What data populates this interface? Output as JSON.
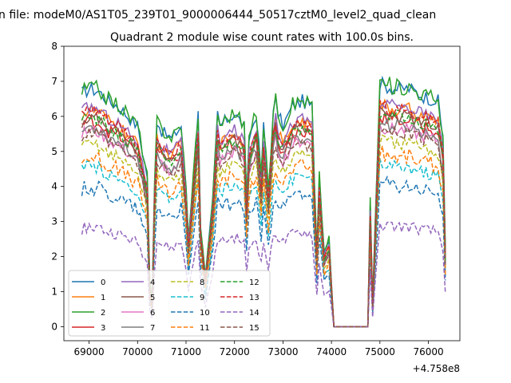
{
  "chart_data": {
    "type": "line",
    "suptitle": "n file: modeM0/AS1T05_239T01_9000006444_50517cztM0_level2_quad_clean",
    "title": "Quadrant 2 module wise count rates with 100.0s bins.",
    "xlabel": "",
    "ylabel": "",
    "x_offset_label": "+4.758e8",
    "xlim": [
      68480,
      76650
    ],
    "ylim": [
      -0.4,
      8.0
    ],
    "xticks": [
      69000,
      70000,
      71000,
      72000,
      73000,
      74000,
      75000,
      76000
    ],
    "xtick_labels": [
      "69000",
      "70000",
      "71000",
      "72000",
      "73000",
      "74000",
      "75000",
      "76000"
    ],
    "yticks": [
      0,
      1,
      2,
      3,
      4,
      5,
      6,
      7,
      8
    ],
    "ytick_labels": [
      "0",
      "1",
      "2",
      "3",
      "4",
      "5",
      "6",
      "7",
      "8"
    ],
    "grid": false,
    "legend_position": "lower-left",
    "legend_columns": 4,
    "x_segments": [
      [
        68850,
        70250
      ],
      [
        70300,
        72800
      ],
      [
        72850,
        74050
      ],
      [
        74050,
        74750
      ],
      [
        74750,
        76350
      ]
    ],
    "profile_anchors": {
      "x": [
        68850,
        69000,
        69200,
        69400,
        69600,
        69800,
        70000,
        70200,
        70250,
        70300,
        70350,
        70400,
        70500,
        70700,
        70900,
        71000,
        71050,
        71150,
        71250,
        71300,
        71400,
        71550,
        71650,
        71700,
        71800,
        72000,
        72200,
        72250,
        72300,
        72450,
        72550,
        72600,
        72700,
        72800,
        72850,
        72900,
        73000,
        73200,
        73400,
        73600,
        73650,
        73700,
        73750,
        73850,
        73950,
        74050,
        74750,
        74800,
        74850,
        74900,
        75000,
        75300,
        75600,
        75900,
        76200,
        76300,
        76350
      ],
      "f": [
        0.93,
        0.95,
        0.94,
        0.9,
        0.88,
        0.84,
        0.8,
        0.6,
        0.18,
        0.1,
        0.55,
        0.82,
        0.78,
        0.75,
        0.8,
        0.55,
        0.35,
        0.6,
        0.85,
        0.4,
        0.2,
        0.5,
        0.85,
        0.8,
        0.82,
        0.85,
        0.8,
        0.5,
        0.75,
        0.85,
        0.6,
        0.8,
        0.55,
        0.85,
        0.9,
        0.85,
        0.8,
        0.88,
        0.9,
        0.88,
        0.55,
        0.3,
        0.6,
        0.3,
        0.35,
        0.0,
        0.0,
        0.5,
        0.1,
        0.4,
        0.97,
        0.95,
        0.95,
        0.92,
        0.9,
        0.75,
        0.3
      ]
    },
    "series": [
      {
        "name": "0",
        "color": "#1f77b4",
        "dash": "solid",
        "level": 7.15,
        "jitter": 0.22
      },
      {
        "name": "1",
        "color": "#ff7f0e",
        "dash": "solid",
        "level": 6.5,
        "jitter": 0.22
      },
      {
        "name": "2",
        "color": "#2ca02c",
        "dash": "solid",
        "level": 7.2,
        "jitter": 0.25
      },
      {
        "name": "3",
        "color": "#d62728",
        "dash": "solid",
        "level": 6.2,
        "jitter": 0.22
      },
      {
        "name": "4",
        "color": "#9467bd",
        "dash": "solid",
        "level": 6.6,
        "jitter": 0.2
      },
      {
        "name": "5",
        "color": "#8c564b",
        "dash": "solid",
        "level": 6.3,
        "jitter": 0.2
      },
      {
        "name": "6",
        "color": "#e377c2",
        "dash": "solid",
        "level": 5.9,
        "jitter": 0.2
      },
      {
        "name": "7",
        "color": "#7f7f7f",
        "dash": "solid",
        "level": 6.0,
        "jitter": 0.2
      },
      {
        "name": "8",
        "color": "#bcbd22",
        "dash": "dashed",
        "level": 5.5,
        "jitter": 0.2
      },
      {
        "name": "9",
        "color": "#17becf",
        "dash": "dashed",
        "level": 4.8,
        "jitter": 0.2
      },
      {
        "name": "10",
        "color": "#1f77b4",
        "dash": "dashed",
        "level": 4.2,
        "jitter": 0.25
      },
      {
        "name": "11",
        "color": "#ff7f0e",
        "dash": "dashed",
        "level": 5.1,
        "jitter": 0.25
      },
      {
        "name": "12",
        "color": "#2ca02c",
        "dash": "dashed",
        "level": 6.3,
        "jitter": 0.2
      },
      {
        "name": "13",
        "color": "#d62728",
        "dash": "dashed",
        "level": 6.5,
        "jitter": 0.2
      },
      {
        "name": "14",
        "color": "#9467bd",
        "dash": "dashed",
        "level": 3.0,
        "jitter": 0.18
      },
      {
        "name": "15",
        "color": "#8c564b",
        "dash": "dashed",
        "level": 5.8,
        "jitter": 0.2
      }
    ]
  }
}
